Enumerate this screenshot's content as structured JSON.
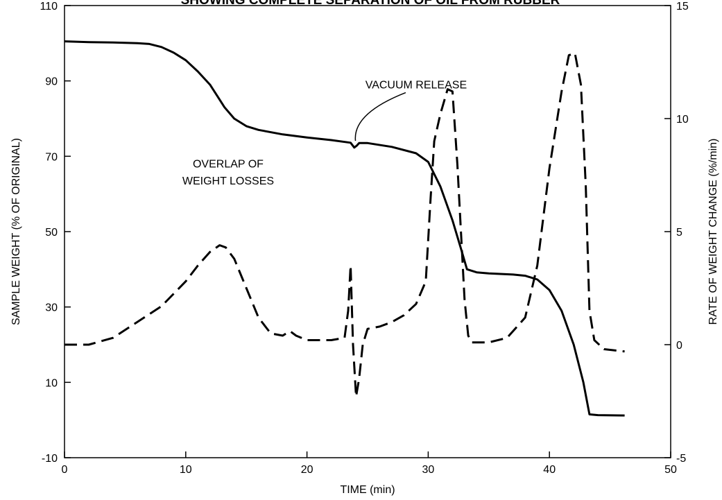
{
  "chart_data": {
    "type": "line",
    "title": "SHOWING COMPLETE SEPARATION OF OIL FROM RUBBER",
    "xlabel": "TIME (min)",
    "ylabel_left": "SAMPLE WEIGHT (% OF ORIGINAL)",
    "ylabel_right": "RATE OF WEIGHT CHANGE (%/min)",
    "xlim": [
      0,
      50
    ],
    "ylim_left": [
      -10,
      110
    ],
    "ylim_right": [
      -5,
      15
    ],
    "x_ticks": [
      "0",
      "10",
      "20",
      "30",
      "40",
      "50"
    ],
    "y_ticks_left": [
      "-10",
      "10",
      "30",
      "50",
      "70",
      "90",
      "110"
    ],
    "y_ticks_right": [
      "-5",
      "0",
      "5",
      "10",
      "15"
    ],
    "grid": false,
    "legend": "none",
    "annotations": [
      {
        "text": "VACUUM RELEASE",
        "x": 29,
        "y": 88,
        "axis": "left",
        "points_to": [
          24,
          73
        ]
      },
      {
        "text": "OVERLAP OF",
        "x": 13.5,
        "y": 67,
        "axis": "left"
      },
      {
        "text": "WEIGHT LOSSES",
        "x": 13.5,
        "y": 62.5,
        "axis": "left"
      }
    ],
    "series": [
      {
        "axis": "left",
        "line_style": "solid",
        "x": [
          0,
          2,
          4,
          6,
          7,
          8,
          9,
          10,
          11,
          12,
          12.7,
          13.2,
          14,
          15,
          16,
          18,
          20,
          22,
          23.6,
          23.9,
          24.1,
          24.3,
          25,
          27,
          29,
          30,
          31,
          32,
          32.7,
          33.2,
          34,
          35,
          37,
          38,
          39,
          40,
          41,
          42,
          42.8,
          43.3,
          44,
          46.2
        ],
        "y": [
          100.5,
          100.3,
          100.2,
          100,
          99.8,
          99,
          97.5,
          95.5,
          92.5,
          89,
          85.5,
          83,
          80,
          78,
          77,
          75.8,
          75,
          74.3,
          73.6,
          72.3,
          72.8,
          73.5,
          73.5,
          72.5,
          70.8,
          68.5,
          62,
          53,
          45.5,
          40,
          39.2,
          38.9,
          38.6,
          38.3,
          37.3,
          34.5,
          29,
          20,
          10,
          1.5,
          1.3,
          1.2
        ]
      },
      {
        "axis": "right",
        "line_style": "dashed",
        "x": [
          0,
          2,
          4,
          6,
          8,
          10,
          11,
          12,
          12.8,
          13.3,
          14,
          15,
          16,
          17,
          18,
          18.6,
          19.1,
          20,
          22,
          23.1,
          23.4,
          23.6,
          23.8,
          24.05,
          24.3,
          24.6,
          25,
          26,
          27,
          28,
          29,
          29.8,
          30.2,
          30.5,
          31,
          31.6,
          32,
          32.4,
          33,
          33.3,
          33.6,
          34,
          35,
          36.5,
          38,
          39,
          40,
          41,
          41.6,
          42.1,
          42.6,
          43,
          43.3,
          43.7,
          44.5,
          46.2
        ],
        "y": [
          0,
          0,
          0.3,
          1,
          1.7,
          2.8,
          3.5,
          4.1,
          4.4,
          4.3,
          3.8,
          2.5,
          1.2,
          0.5,
          0.4,
          0.6,
          0.4,
          0.2,
          0.2,
          0.3,
          1.5,
          3.5,
          0,
          -2.3,
          -1.5,
          0,
          0.7,
          0.8,
          1,
          1.3,
          1.8,
          2.8,
          6.5,
          9,
          10.2,
          11.3,
          11.2,
          8,
          2,
          0.4,
          0.1,
          0.1,
          0.1,
          0.3,
          1.2,
          3.5,
          7.8,
          11.2,
          12.8,
          12.9,
          11.5,
          7,
          1.5,
          0.2,
          -0.2,
          -0.3
        ]
      }
    ]
  }
}
